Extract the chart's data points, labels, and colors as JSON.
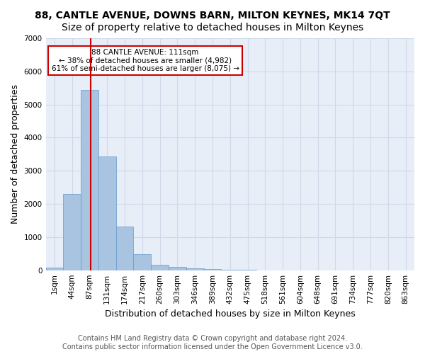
{
  "title": "88, CANTLE AVENUE, DOWNS BARN, MILTON KEYNES, MK14 7QT",
  "subtitle": "Size of property relative to detached houses in Milton Keynes",
  "xlabel": "Distribution of detached houses by size in Milton Keynes",
  "ylabel": "Number of detached properties",
  "footer_line1": "Contains HM Land Registry data © Crown copyright and database right 2024.",
  "footer_line2": "Contains public sector information licensed under the Open Government Licence v3.0.",
  "bin_labels": [
    "1sqm",
    "44sqm",
    "87sqm",
    "131sqm",
    "174sqm",
    "217sqm",
    "260sqm",
    "303sqm",
    "346sqm",
    "389sqm",
    "432sqm",
    "475sqm",
    "518sqm",
    "561sqm",
    "604sqm",
    "648sqm",
    "691sqm",
    "734sqm",
    "777sqm",
    "820sqm",
    "863sqm"
  ],
  "bar_values": [
    80,
    2300,
    5450,
    3430,
    1320,
    480,
    160,
    100,
    60,
    35,
    10,
    5,
    3,
    2,
    1,
    1,
    0,
    0,
    0,
    0,
    0
  ],
  "bar_color": "#a8c4e0",
  "bar_edge_color": "#6699cc",
  "marker_bin_index": 2,
  "marker_sqm_low": 87,
  "marker_sqm_val": 111,
  "marker_sqm_high": 131,
  "marker_color": "#cc0000",
  "annotation_text": "88 CANTLE AVENUE: 111sqm\n← 38% of detached houses are smaller (4,982)\n61% of semi-detached houses are larger (8,075) →",
  "annotation_box_color": "#ffffff",
  "annotation_box_edge": "#cc0000",
  "ylim": [
    0,
    7000
  ],
  "yticks": [
    0,
    1000,
    2000,
    3000,
    4000,
    5000,
    6000,
    7000
  ],
  "grid_color": "#d0d8e8",
  "bg_color": "#e8eef8",
  "title_fontsize": 10,
  "subtitle_fontsize": 10,
  "axis_fontsize": 9,
  "tick_fontsize": 7.5,
  "footer_fontsize": 7
}
